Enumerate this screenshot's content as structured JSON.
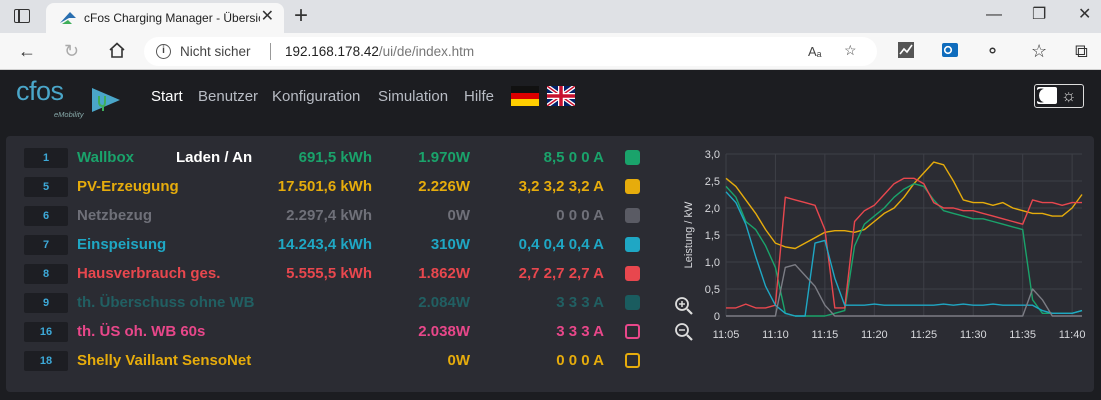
{
  "browser": {
    "tab_title": "cFos Charging Manager - Übersicht",
    "tab_close": "✕",
    "new_tab": "+",
    "security": "Nicht sicher",
    "url_host": "192.168.178.42",
    "url_path": "/ui/de/index.htm",
    "read_aloud": "Aₐ"
  },
  "app": {
    "logo_text": "cfos",
    "logo_sub": "eMobility",
    "menu": [
      "Start",
      "Benutzer",
      "Konfiguration",
      "Simulation",
      "Hilfe"
    ],
    "active_menu": "Start"
  },
  "devices": [
    {
      "id": "1",
      "name": "Wallbox",
      "state": "Laden / An",
      "energy": "691,5 kWh",
      "power": "1.970W",
      "current": "8,5 0 0 A",
      "color": "#1aa36b",
      "swatch_fill": true
    },
    {
      "id": "5",
      "name": "PV-Erzeugung",
      "state": "",
      "energy": "17.501,6 kWh",
      "power": "2.226W",
      "current": "3,2 3,2 3,2 A",
      "color": "#e6ac0c",
      "swatch_fill": true
    },
    {
      "id": "6",
      "name": "Netzbezug",
      "state": "",
      "energy": "2.297,4 kWh",
      "power": "0W",
      "current": "0 0 0 A",
      "color": "#5a5b64",
      "swatch_fill": true
    },
    {
      "id": "7",
      "name": "Einspeisung",
      "state": "",
      "energy": "14.243,4 kWh",
      "power": "310W",
      "current": "0,4 0,4 0,4 A",
      "color": "#1fa7c4",
      "swatch_fill": true
    },
    {
      "id": "8",
      "name": "Hausverbrauch ges.",
      "state": "",
      "energy": "5.555,5 kWh",
      "power": "1.862W",
      "current": "2,7 2,7 2,7 A",
      "color": "#e8474e",
      "swatch_fill": true
    },
    {
      "id": "9",
      "name": "th. Überschuss ohne WB",
      "state": "",
      "energy": "",
      "power": "2.084W",
      "current": "3 3 3 A",
      "color": "#1a5c5f",
      "swatch_fill": true
    },
    {
      "id": "16",
      "name": "th. ÜS oh. WB 60s",
      "state": "",
      "energy": "",
      "power": "2.038W",
      "current": "3 3 3 A",
      "color": "#e8478a",
      "swatch_fill": false
    },
    {
      "id": "18",
      "name": "Shelly Vaillant SensoNet",
      "state": "",
      "energy": "",
      "power": "0W",
      "current": "0 0 0 A",
      "color": "#e6ac0c",
      "swatch_fill": false
    }
  ],
  "chart_data": {
    "type": "line",
    "ylabel": "Leistung / kW",
    "ylim": [
      0,
      3.0
    ],
    "yticks": [
      "3,0",
      "2,5",
      "2,0",
      "1,5",
      "1,0",
      "0,5",
      "0"
    ],
    "xticks": [
      "11:05",
      "11:10",
      "11:15",
      "11:20",
      "11:25",
      "11:30",
      "11:35",
      "11:40"
    ],
    "xrange_min": [
      0,
      36
    ],
    "series": [
      {
        "color": "#e6ac0c",
        "points": [
          [
            0,
            2.55
          ],
          [
            1,
            2.4
          ],
          [
            2,
            2.15
          ],
          [
            3,
            1.9
          ],
          [
            4,
            1.6
          ],
          [
            5,
            1.35
          ],
          [
            6,
            1.28
          ],
          [
            7,
            1.25
          ],
          [
            8,
            1.35
          ],
          [
            9,
            1.45
          ],
          [
            10,
            1.55
          ],
          [
            11,
            1.58
          ],
          [
            12,
            1.58
          ],
          [
            13,
            1.55
          ],
          [
            14,
            1.6
          ],
          [
            15,
            1.75
          ],
          [
            16,
            1.9
          ],
          [
            17,
            2.0
          ],
          [
            18,
            2.2
          ],
          [
            19,
            2.45
          ],
          [
            20,
            2.65
          ],
          [
            21,
            2.85
          ],
          [
            22,
            2.8
          ],
          [
            23,
            2.5
          ],
          [
            24,
            2.15
          ],
          [
            25,
            2.1
          ],
          [
            26,
            2.1
          ],
          [
            27,
            2.05
          ],
          [
            28,
            2.1
          ],
          [
            29,
            2.0
          ],
          [
            30,
            1.95
          ],
          [
            31,
            1.9
          ],
          [
            32,
            1.9
          ],
          [
            33,
            1.85
          ],
          [
            34,
            1.85
          ],
          [
            35,
            2.0
          ],
          [
            36,
            2.25
          ]
        ]
      },
      {
        "color": "#1aa36b",
        "points": [
          [
            0,
            2.4
          ],
          [
            1,
            2.2
          ],
          [
            2,
            1.75
          ],
          [
            3,
            1.6
          ],
          [
            4,
            1.3
          ],
          [
            5,
            0.9
          ],
          [
            6,
            0.05
          ],
          [
            7,
            0.0
          ],
          [
            8,
            0.0
          ],
          [
            9,
            0.0
          ],
          [
            10,
            0.0
          ],
          [
            11,
            0.05
          ],
          [
            12,
            0.1
          ],
          [
            13,
            1.3
          ],
          [
            14,
            1.7
          ],
          [
            15,
            1.85
          ],
          [
            16,
            2.0
          ],
          [
            17,
            2.2
          ],
          [
            18,
            2.35
          ],
          [
            19,
            2.45
          ],
          [
            20,
            2.4
          ],
          [
            21,
            2.15
          ],
          [
            22,
            1.95
          ],
          [
            23,
            1.9
          ],
          [
            24,
            1.85
          ],
          [
            25,
            1.8
          ],
          [
            26,
            1.8
          ],
          [
            27,
            1.75
          ],
          [
            28,
            1.7
          ],
          [
            29,
            1.65
          ],
          [
            30,
            1.6
          ],
          [
            31,
            0.3
          ],
          [
            32,
            0.05
          ],
          [
            33,
            0.05
          ],
          [
            34,
            0.05
          ],
          [
            35,
            0.05
          ],
          [
            36,
            0.1
          ]
        ]
      },
      {
        "color": "#e8474e",
        "points": [
          [
            0,
            0.15
          ],
          [
            1,
            0.15
          ],
          [
            2,
            0.22
          ],
          [
            3,
            0.15
          ],
          [
            4,
            0.15
          ],
          [
            5,
            0.2
          ],
          [
            6,
            2.2
          ],
          [
            7,
            2.15
          ],
          [
            8,
            2.1
          ],
          [
            9,
            2.05
          ],
          [
            10,
            1.6
          ],
          [
            11,
            0.15
          ],
          [
            12,
            0.15
          ],
          [
            13,
            1.75
          ],
          [
            14,
            1.95
          ],
          [
            15,
            2.05
          ],
          [
            16,
            2.25
          ],
          [
            17,
            2.45
          ],
          [
            18,
            2.55
          ],
          [
            19,
            2.55
          ],
          [
            20,
            2.45
          ],
          [
            21,
            2.1
          ],
          [
            22,
            2.0
          ],
          [
            23,
            2.0
          ],
          [
            24,
            1.95
          ],
          [
            25,
            1.95
          ],
          [
            26,
            1.9
          ],
          [
            27,
            1.85
          ],
          [
            28,
            1.8
          ],
          [
            29,
            1.75
          ],
          [
            30,
            1.7
          ],
          [
            31,
            2.15
          ],
          [
            32,
            2.1
          ],
          [
            33,
            2.1
          ],
          [
            34,
            2.05
          ],
          [
            35,
            2.1
          ],
          [
            36,
            2.1
          ]
        ]
      },
      {
        "color": "#1fa7c4",
        "points": [
          [
            0,
            2.3
          ],
          [
            1,
            2.1
          ],
          [
            2,
            1.7
          ],
          [
            3,
            1.1
          ],
          [
            4,
            0.55
          ],
          [
            5,
            0.2
          ],
          [
            6,
            0.05
          ],
          [
            7,
            0.0
          ],
          [
            8,
            0.0
          ],
          [
            9,
            1.35
          ],
          [
            10,
            1.4
          ],
          [
            11,
            0.7
          ],
          [
            12,
            0.2
          ],
          [
            13,
            0.2
          ],
          [
            14,
            0.2
          ],
          [
            15,
            0.22
          ],
          [
            16,
            0.2
          ],
          [
            17,
            0.2
          ],
          [
            18,
            0.2
          ],
          [
            19,
            0.2
          ],
          [
            20,
            0.2
          ],
          [
            21,
            0.2
          ],
          [
            22,
            0.22
          ],
          [
            23,
            0.2
          ],
          [
            24,
            0.22
          ],
          [
            25,
            0.2
          ],
          [
            26,
            0.2
          ],
          [
            27,
            0.22
          ],
          [
            28,
            0.2
          ],
          [
            29,
            0.2
          ],
          [
            30,
            0.2
          ],
          [
            31,
            0.2
          ],
          [
            32,
            0.1
          ],
          [
            33,
            0.05
          ],
          [
            34,
            0.05
          ],
          [
            35,
            0.05
          ],
          [
            36,
            0.1
          ]
        ]
      },
      {
        "color": "#7c7d85",
        "points": [
          [
            0,
            0.0
          ],
          [
            1,
            0.0
          ],
          [
            2,
            0.0
          ],
          [
            3,
            0.0
          ],
          [
            4,
            0.0
          ],
          [
            5,
            0.0
          ],
          [
            6,
            0.9
          ],
          [
            7,
            0.95
          ],
          [
            8,
            0.75
          ],
          [
            9,
            0.55
          ],
          [
            10,
            0.2
          ],
          [
            11,
            0.0
          ],
          [
            12,
            0.0
          ],
          [
            13,
            0.0
          ],
          [
            14,
            0.0
          ],
          [
            15,
            0.0
          ],
          [
            16,
            0.0
          ],
          [
            17,
            0.0
          ],
          [
            18,
            0.0
          ],
          [
            19,
            0.0
          ],
          [
            20,
            0.0
          ],
          [
            21,
            0.0
          ],
          [
            22,
            0.0
          ],
          [
            23,
            0.0
          ],
          [
            24,
            0.0
          ],
          [
            25,
            0.0
          ],
          [
            26,
            0.0
          ],
          [
            27,
            0.0
          ],
          [
            28,
            0.0
          ],
          [
            29,
            0.0
          ],
          [
            30,
            0.0
          ],
          [
            31,
            0.5
          ],
          [
            32,
            0.3
          ],
          [
            33,
            0.0
          ],
          [
            34,
            0.0
          ],
          [
            35,
            0.0
          ],
          [
            36,
            0.0
          ]
        ]
      }
    ]
  }
}
